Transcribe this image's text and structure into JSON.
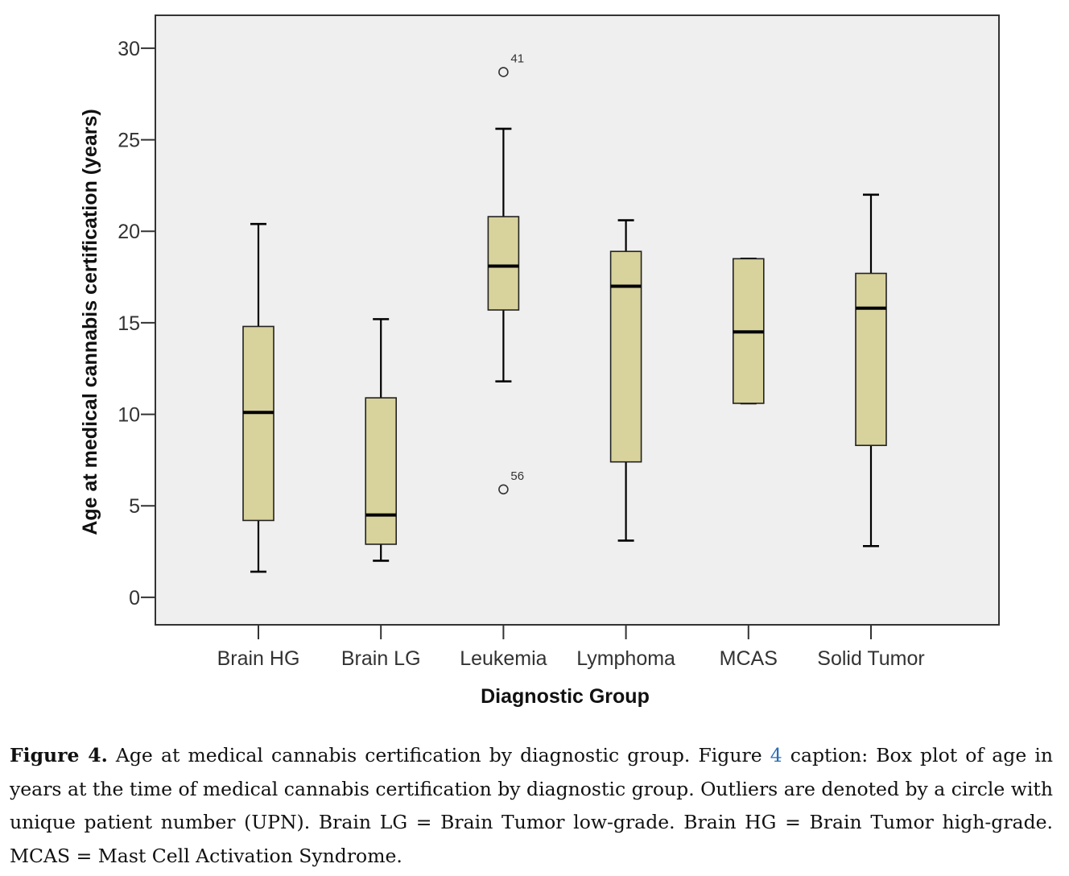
{
  "chart_data": {
    "type": "box",
    "xlabel": "Diagnostic Group",
    "ylabel": "Age at medical cannabis certification (years)",
    "ylim": [
      -1.5,
      31.8
    ],
    "yticks": [
      0,
      5,
      10,
      15,
      20,
      25,
      30
    ],
    "categories": [
      "Brain HG",
      "Brain LG",
      "Leukemia",
      "Lymphoma",
      "MCAS",
      "Solid Tumor"
    ],
    "boxes": [
      {
        "category": "Brain HG",
        "whisker_low": 1.4,
        "q1": 4.2,
        "median": 10.1,
        "q3": 14.8,
        "whisker_high": 20.4
      },
      {
        "category": "Brain LG",
        "whisker_low": 2.0,
        "q1": 2.9,
        "median": 4.5,
        "q3": 10.9,
        "whisker_high": 15.2
      },
      {
        "category": "Leukemia",
        "whisker_low": 11.8,
        "q1": 15.7,
        "median": 18.1,
        "q3": 20.8,
        "whisker_high": 25.6
      },
      {
        "category": "Lymphoma",
        "whisker_low": 3.1,
        "q1": 7.4,
        "median": 17.0,
        "q3": 18.9,
        "whisker_high": 20.6
      },
      {
        "category": "MCAS",
        "whisker_low": 10.6,
        "q1": 10.6,
        "median": 14.5,
        "q3": 18.5,
        "whisker_high": 18.5
      },
      {
        "category": "Solid Tumor",
        "whisker_low": 2.8,
        "q1": 8.3,
        "median": 15.8,
        "q3": 17.7,
        "whisker_high": 22.0
      }
    ],
    "outliers": [
      {
        "category": "Leukemia",
        "value": 28.7,
        "label": "41"
      },
      {
        "category": "Leukemia",
        "value": 5.9,
        "label": "56"
      }
    ],
    "colors": {
      "box_fill": "#d8d29c",
      "plot_bg": "#efefef",
      "stroke": "#000000"
    }
  },
  "caption": {
    "label": "Figure 4.",
    "text_1": " Age at medical cannabis certification by diagnostic group. Figure ",
    "ref": "4",
    "text_2": " caption: Box plot of age in years at the time of medical cannabis certification by diagnostic group.  Outliers are denoted by a circle with unique patient number (UPN). Brain LG = Brain Tumor low-grade.  Brain HG = Brain Tumor high-grade. MCAS = Mast Cell Activation Syndrome."
  }
}
